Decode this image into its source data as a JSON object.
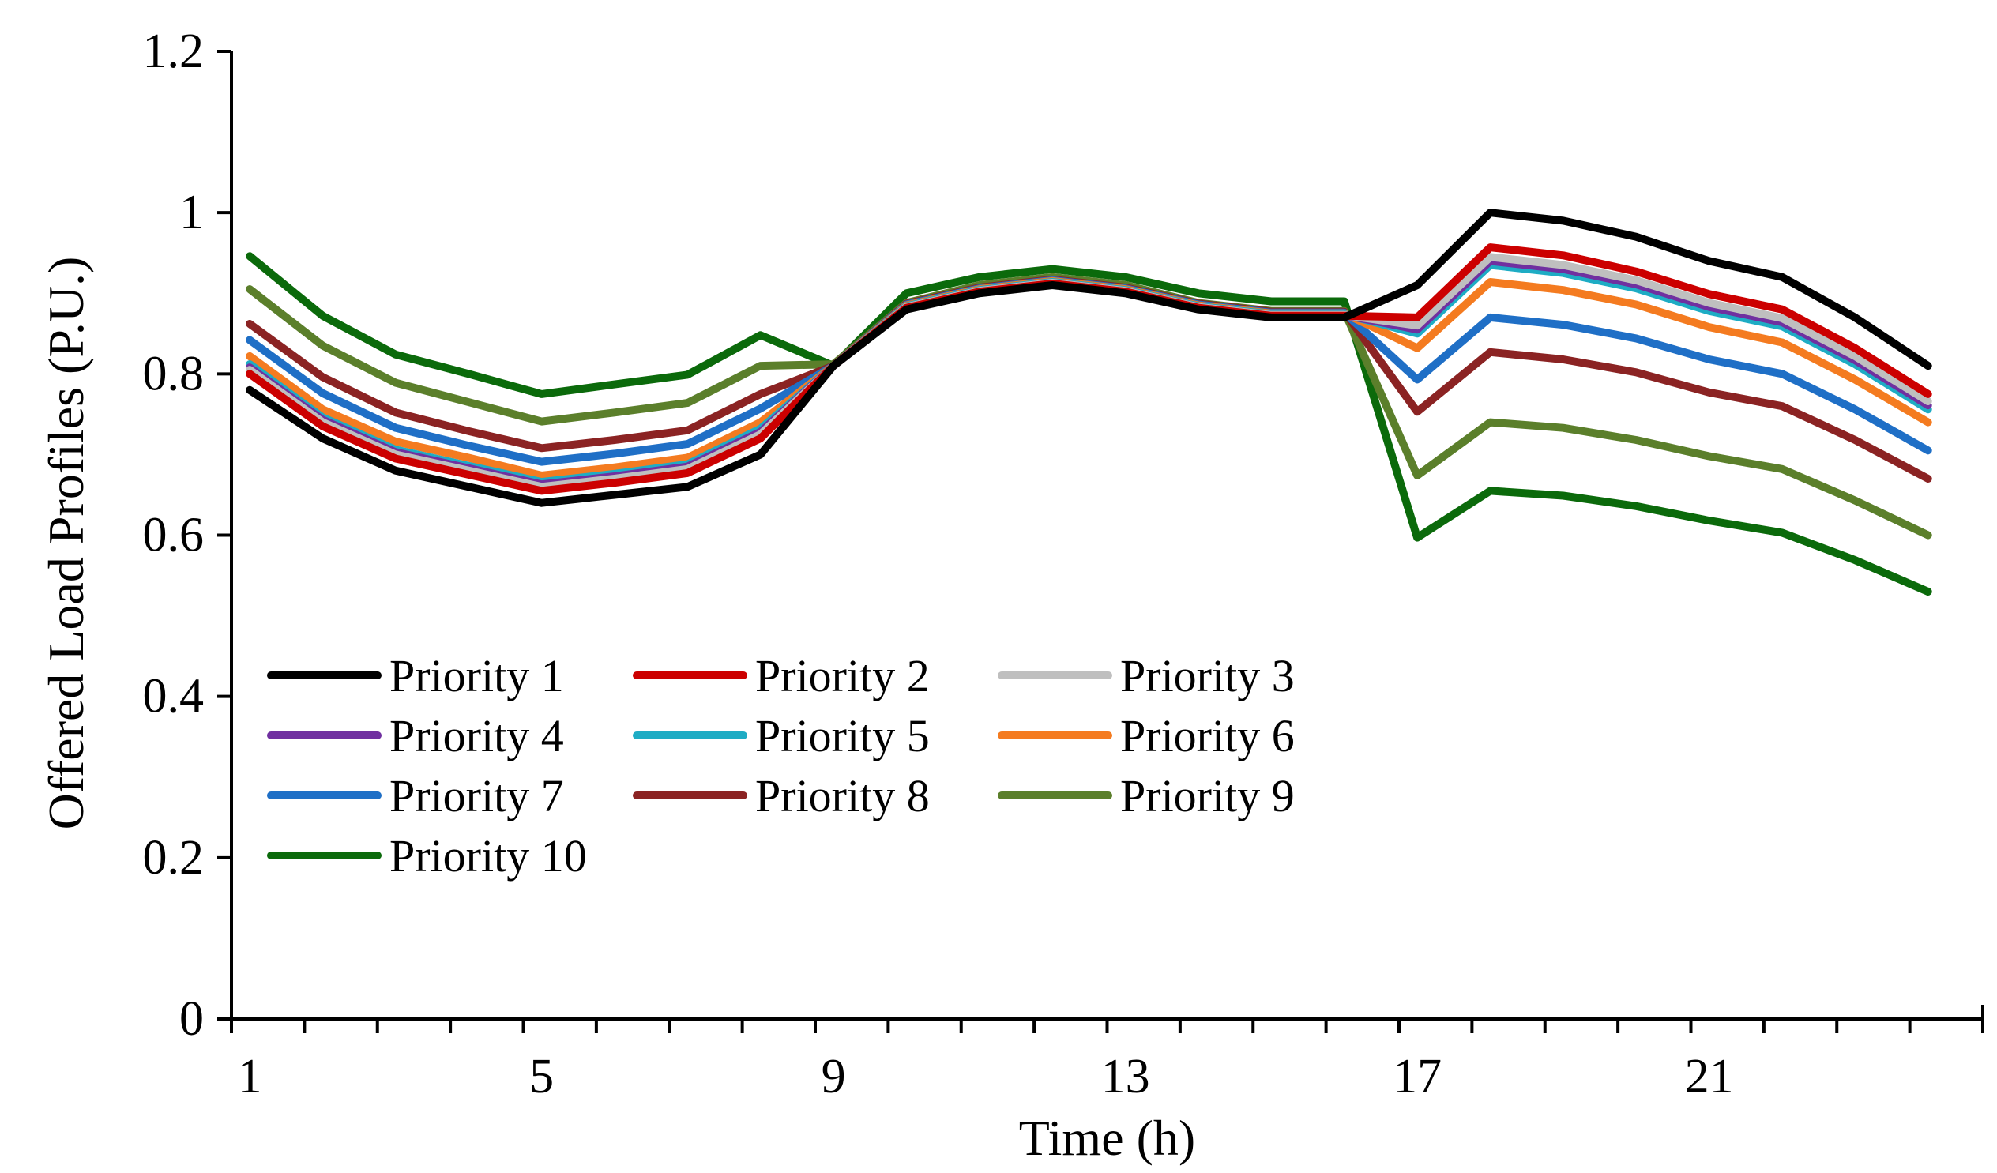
{
  "chart_data": {
    "type": "line",
    "xlabel": "Time (h)",
    "ylabel": "Offered Load Profiles (P.U.)",
    "xlim": [
      0.75,
      24.75
    ],
    "ylim": [
      0,
      1.2
    ],
    "x_tick_labels": [
      "1",
      "5",
      "9",
      "13",
      "17",
      "21"
    ],
    "y_tick_labels": [
      "0",
      "0.2",
      "0.4",
      "0.6",
      "0.8",
      "1",
      "1.2"
    ],
    "legend_position": "bottom-left",
    "grid": false,
    "x": [
      1,
      2,
      3,
      4,
      5,
      6,
      7,
      8,
      9,
      10,
      11,
      12,
      13,
      14,
      15,
      16,
      17,
      18,
      19,
      20,
      21,
      22,
      23,
      24
    ],
    "series": [
      {
        "name": "Priority 1",
        "color": "#000000",
        "values": [
          0.78,
          0.72,
          0.68,
          0.66,
          0.64,
          0.65,
          0.66,
          0.7,
          0.81,
          0.88,
          0.9,
          0.91,
          0.9,
          0.88,
          0.87,
          0.87,
          0.91,
          1.0,
          0.99,
          0.97,
          0.94,
          0.92,
          0.87,
          0.81
        ]
      },
      {
        "name": "Priority 2",
        "color": "#cc0000",
        "values": [
          0.8,
          0.735,
          0.695,
          0.675,
          0.655,
          0.665,
          0.677,
          0.72,
          0.81,
          0.882,
          0.902,
          0.912,
          0.902,
          0.882,
          0.872,
          0.872,
          0.87,
          0.957,
          0.947,
          0.927,
          0.899,
          0.88,
          0.832,
          0.775
        ]
      },
      {
        "name": "Priority 3",
        "color": "#bfbfbf",
        "values": [
          0.805,
          0.74,
          0.7,
          0.68,
          0.66,
          0.67,
          0.682,
          0.725,
          0.81,
          0.883,
          0.903,
          0.913,
          0.903,
          0.883,
          0.873,
          0.873,
          0.86,
          0.945,
          0.935,
          0.916,
          0.888,
          0.869,
          0.822,
          0.766
        ]
      },
      {
        "name": "Priority 4",
        "color": "#7030a0",
        "values": [
          0.808,
          0.743,
          0.703,
          0.683,
          0.663,
          0.673,
          0.685,
          0.728,
          0.81,
          0.883,
          0.903,
          0.913,
          0.903,
          0.883,
          0.873,
          0.873,
          0.855,
          0.94,
          0.93,
          0.911,
          0.883,
          0.864,
          0.817,
          0.761
        ]
      },
      {
        "name": "Priority 5",
        "color": "#1eacc4",
        "values": [
          0.812,
          0.746,
          0.706,
          0.686,
          0.666,
          0.676,
          0.688,
          0.732,
          0.81,
          0.884,
          0.904,
          0.914,
          0.904,
          0.884,
          0.874,
          0.874,
          0.85,
          0.935,
          0.925,
          0.906,
          0.878,
          0.859,
          0.812,
          0.756
        ]
      },
      {
        "name": "Priority 6",
        "color": "#f47b20",
        "values": [
          0.822,
          0.756,
          0.716,
          0.696,
          0.674,
          0.684,
          0.696,
          0.74,
          0.81,
          0.885,
          0.905,
          0.915,
          0.905,
          0.885,
          0.875,
          0.875,
          0.832,
          0.914,
          0.904,
          0.886,
          0.858,
          0.839,
          0.793,
          0.74
        ]
      },
      {
        "name": "Priority 7",
        "color": "#1f6fc6",
        "values": [
          0.842,
          0.776,
          0.733,
          0.711,
          0.691,
          0.701,
          0.713,
          0.757,
          0.81,
          0.886,
          0.906,
          0.916,
          0.906,
          0.886,
          0.876,
          0.876,
          0.793,
          0.87,
          0.861,
          0.844,
          0.818,
          0.8,
          0.756,
          0.705
        ]
      },
      {
        "name": "Priority 8",
        "color": "#8b2323",
        "values": [
          0.862,
          0.796,
          0.752,
          0.729,
          0.708,
          0.718,
          0.73,
          0.775,
          0.81,
          0.887,
          0.907,
          0.917,
          0.907,
          0.887,
          0.877,
          0.877,
          0.753,
          0.827,
          0.818,
          0.802,
          0.777,
          0.76,
          0.718,
          0.67
        ]
      },
      {
        "name": "Priority 9",
        "color": "#5b7f2b",
        "values": [
          0.905,
          0.835,
          0.789,
          0.765,
          0.741,
          0.752,
          0.764,
          0.81,
          0.812,
          0.888,
          0.91,
          0.92,
          0.91,
          0.888,
          0.878,
          0.878,
          0.674,
          0.74,
          0.733,
          0.718,
          0.698,
          0.682,
          0.643,
          0.6
        ]
      },
      {
        "name": "Priority 10",
        "color": "#0b6a0b",
        "values": [
          0.946,
          0.872,
          0.824,
          0.8,
          0.775,
          0.787,
          0.799,
          0.848,
          0.81,
          0.9,
          0.92,
          0.93,
          0.92,
          0.9,
          0.89,
          0.89,
          0.597,
          0.655,
          0.649,
          0.636,
          0.618,
          0.603,
          0.569,
          0.53
        ]
      }
    ]
  }
}
